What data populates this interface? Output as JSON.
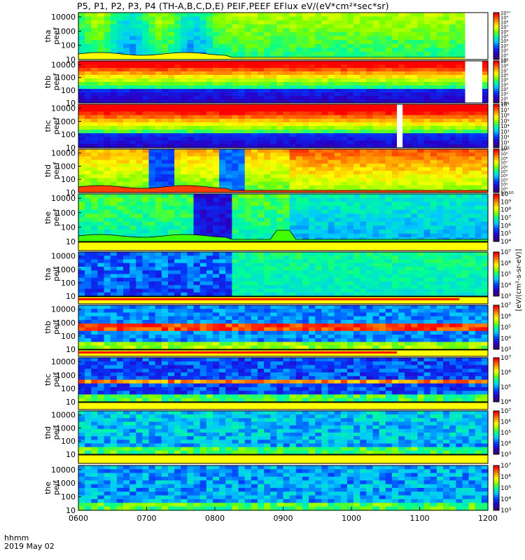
{
  "title": "P5, P1, P2, P3, P4 (TH-A,B,C,D,E) PEIF,PEEF EFlux eV/(eV*cm²*sec*sr)",
  "axis_unit": {
    "line1": "hhmm",
    "line2": "2019 May 02"
  },
  "colorbar_label": "[eV/(cm²-s-sr-eV)]",
  "chart_data": {
    "type": "heatmap",
    "x_ticks": [
      "0600",
      "0700",
      "0800",
      "0900",
      "1000",
      "1100",
      "1200"
    ],
    "xlim": [
      "0600",
      "1200"
    ],
    "panels": [
      {
        "probe": "tha",
        "species": "peef",
        "y_ticks": [
          "10",
          "100",
          "1000",
          "10000"
        ],
        "cbar_ticks": [
          "10⁰",
          "10¹",
          "10²",
          "10³",
          "10⁴",
          "10⁵",
          "10⁶",
          "10⁷",
          "10⁸",
          "10⁹",
          "10¹⁰"
        ],
        "gap": [
          1140,
          1160
        ]
      },
      {
        "probe": "thb",
        "species": "peef",
        "y_ticks": [
          "10",
          "100",
          "1000",
          "10000"
        ],
        "cbar_ticks": [
          "10⁰",
          "10¹",
          "10²",
          "10³",
          "10⁴",
          "10⁵",
          "10⁶",
          "10⁷",
          "10⁸",
          "10⁹"
        ],
        "gap": [
          1140,
          1155
        ]
      },
      {
        "probe": "thc",
        "species": "peef",
        "y_ticks": [
          "10",
          "100",
          "1000",
          "10000"
        ],
        "cbar_ticks": [
          "10⁰",
          "10¹",
          "10²",
          "10³",
          "10⁴",
          "10⁵",
          "10⁶",
          "10⁷",
          "10⁸"
        ],
        "gap": [
          1040,
          1045
        ]
      },
      {
        "probe": "thd",
        "species": "peef",
        "y_ticks": [
          "10",
          "100",
          "1000",
          "10000"
        ],
        "cbar_ticks": [
          "10⁰",
          "10¹",
          "10²",
          "10³",
          "10⁴",
          "10⁵",
          "10⁶",
          "10⁷",
          "10⁸",
          "10⁹",
          "10¹⁰"
        ]
      },
      {
        "probe": "the",
        "species": "peef",
        "y_ticks": [
          "10",
          "100",
          "1000",
          "10000"
        ],
        "cbar_ticks": [
          "10⁴",
          "10⁵",
          "10⁶",
          "10⁷",
          "10⁸",
          "10⁹",
          "10¹⁰"
        ]
      },
      {
        "probe": "tha",
        "species": "peif",
        "y_ticks": [
          "10",
          "100",
          "1000",
          "10000"
        ],
        "cbar_ticks": [
          "10³",
          "10⁴",
          "10⁵",
          "10⁶",
          "10⁷"
        ]
      },
      {
        "probe": "thb",
        "species": "peif",
        "y_ticks": [
          "10",
          "100",
          "1000",
          "10000"
        ],
        "cbar_ticks": [
          "10³",
          "10⁴",
          "10⁵",
          "10⁶",
          "10⁷"
        ]
      },
      {
        "probe": "thc",
        "species": "peif",
        "y_ticks": [
          "10",
          "100",
          "1000",
          "10000"
        ],
        "cbar_ticks": [
          "10⁴",
          "10⁵",
          "10⁶",
          "10⁷"
        ]
      },
      {
        "probe": "thd",
        "species": "peif",
        "y_ticks": [
          "10",
          "100",
          "1000",
          "10000"
        ],
        "cbar_ticks": [
          "10³",
          "10⁴",
          "10⁵",
          "10⁶",
          "10⁷"
        ]
      },
      {
        "probe": "the",
        "species": "peif",
        "y_ticks": [
          "10",
          "100",
          "1000",
          "10000"
        ],
        "cbar_ticks": [
          "10³",
          "10⁴",
          "10⁵",
          "10⁶",
          "10⁷"
        ]
      }
    ]
  },
  "colors": {
    "background": "#ffffff",
    "strip_yellow": "#ffff00",
    "strip_red": "#ff0000",
    "gap": "#ffffff",
    "axis": "#000000"
  }
}
